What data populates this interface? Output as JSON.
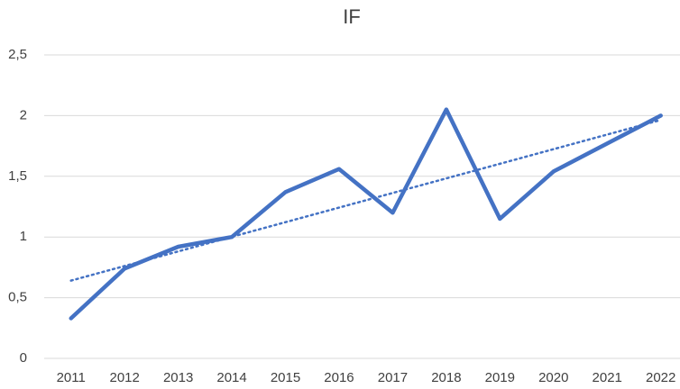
{
  "chart_data": {
    "type": "line",
    "title": "IF",
    "categories": [
      "2011",
      "2012",
      "2013",
      "2014",
      "2015",
      "2016",
      "2017",
      "2018",
      "2019",
      "2020",
      "2021",
      "2022"
    ],
    "series": [
      {
        "name": "IF",
        "color": "#4472c4",
        "values": [
          0.33,
          0.74,
          0.92,
          1.0,
          1.37,
          1.56,
          1.2,
          2.05,
          1.15,
          1.54,
          1.77,
          2.0
        ]
      }
    ],
    "ylim": [
      0,
      2.5
    ],
    "yticks": [
      0,
      {
        "value": 0.5,
        "label": "0,5"
      },
      1,
      {
        "value": 1.5,
        "label": "1,5"
      },
      2,
      {
        "value": 2.5,
        "label": "2,5"
      }
    ],
    "grid": true,
    "trendline": "linear"
  }
}
